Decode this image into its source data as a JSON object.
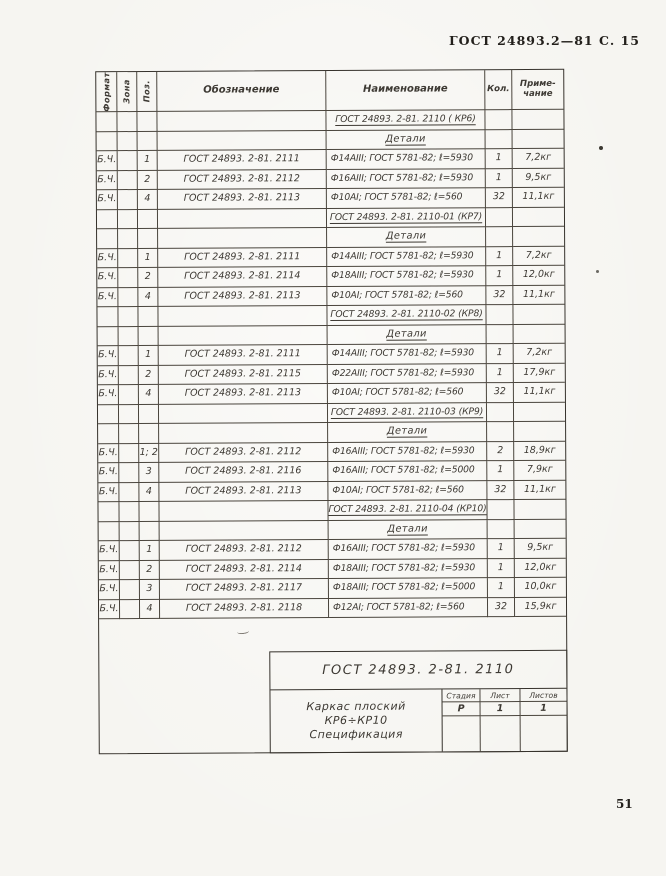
{
  "page": {
    "header_right": "ГОСТ 24893.2—81 С. 15",
    "page_number": "51"
  },
  "spec_table": {
    "headers": [
      "Формат",
      "Зона",
      "Поз.",
      "Обозначение",
      "Наименование",
      "Кол.",
      "Приме-\nчание"
    ],
    "rows": [
      {
        "type": "title",
        "naimenovanie": "ГОСТ 24893. 2-81. 2110 ( КР6)"
      },
      {
        "type": "sub",
        "naimenovanie": "Детали"
      },
      {
        "type": "data",
        "format": "Б.Ч.",
        "zona": "",
        "poz": "1",
        "oboznachenie": "ГОСТ 24893. 2-81. 2111",
        "naimenovanie": "Ф14АIII; ГОСТ 5781-82; ℓ=5930",
        "kol": "1",
        "primechanie": "7,2кг"
      },
      {
        "type": "data",
        "format": "Б.Ч.",
        "zona": "",
        "poz": "2",
        "oboznachenie": "ГОСТ 24893. 2-81. 2112",
        "naimenovanie": "Ф16АIII; ГОСТ 5781-82; ℓ=5930",
        "kol": "1",
        "primechanie": "9,5кг"
      },
      {
        "type": "data",
        "format": "Б.Ч.",
        "zona": "",
        "poz": "4",
        "oboznachenie": "ГОСТ 24893. 2-81. 2113",
        "naimenovanie": "Ф10АI; ГОСТ 5781-82; ℓ=560",
        "kol": "32",
        "primechanie": "11,1кг"
      },
      {
        "type": "title",
        "naimenovanie": "ГОСТ 24893. 2-81. 2110-01 (КР7)"
      },
      {
        "type": "sub",
        "naimenovanie": "Детали"
      },
      {
        "type": "data",
        "format": "Б.Ч.",
        "zona": "",
        "poz": "1",
        "oboznachenie": "ГОСТ 24893. 2-81. 2111",
        "naimenovanie": "Ф14АIII; ГОСТ 5781-82; ℓ=5930",
        "kol": "1",
        "primechanie": "7,2кг"
      },
      {
        "type": "data",
        "format": "Б.Ч.",
        "zona": "",
        "poz": "2",
        "oboznachenie": "ГОСТ 24893. 2-81. 2114",
        "naimenovanie": "Ф18АIII; ГОСТ 5781-82; ℓ=5930",
        "kol": "1",
        "primechanie": "12,0кг"
      },
      {
        "type": "data",
        "format": "Б.Ч.",
        "zona": "",
        "poz": "4",
        "oboznachenie": "ГОСТ 24893. 2-81. 2113",
        "naimenovanie": "Ф10АI; ГОСТ 5781-82; ℓ=560",
        "kol": "32",
        "primechanie": "11,1кг"
      },
      {
        "type": "title",
        "naimenovanie": "ГОСТ 24893. 2-81. 2110-02 (КР8)"
      },
      {
        "type": "sub",
        "naimenovanie": "Детали"
      },
      {
        "type": "data",
        "format": "Б.Ч.",
        "zona": "",
        "poz": "1",
        "oboznachenie": "ГОСТ 24893. 2-81. 2111",
        "naimenovanie": "Ф14АIII; ГОСТ 5781-82; ℓ=5930",
        "kol": "1",
        "primechanie": "7,2кг"
      },
      {
        "type": "data",
        "format": "Б.Ч.",
        "zona": "",
        "poz": "2",
        "oboznachenie": "ГОСТ 24893. 2-81. 2115",
        "naimenovanie": "Ф22АIII; ГОСТ 5781-82; ℓ=5930",
        "kol": "1",
        "primechanie": "17,9кг"
      },
      {
        "type": "data",
        "format": "Б.Ч.",
        "zona": "",
        "poz": "4",
        "oboznachenie": "ГОСТ 24893. 2-81. 2113",
        "naimenovanie": "Ф10АI; ГОСТ 5781-82; ℓ=560",
        "kol": "32",
        "primechanie": "11,1кг"
      },
      {
        "type": "title",
        "naimenovanie": "ГОСТ 24893. 2-81. 2110-03 (КР9)"
      },
      {
        "type": "sub",
        "naimenovanie": "Детали"
      },
      {
        "type": "data",
        "format": "Б.Ч.",
        "zona": "",
        "poz": "1; 2",
        "oboznachenie": "ГОСТ 24893. 2-81. 2112",
        "naimenovanie": "Ф16АIII; ГОСТ 5781-82; ℓ=5930",
        "kol": "2",
        "primechanie": "18,9кг"
      },
      {
        "type": "data",
        "format": "Б.Ч.",
        "zona": "",
        "poz": "3",
        "oboznachenie": "ГОСТ 24893. 2-81. 2116",
        "naimenovanie": "Ф16АIII; ГОСТ 5781-82; ℓ=5000",
        "kol": "1",
        "primechanie": "7,9кг"
      },
      {
        "type": "data",
        "format": "Б.Ч.",
        "zona": "",
        "poz": "4",
        "oboznachenie": "ГОСТ 24893. 2-81. 2113",
        "naimenovanie": "Ф10АI; ГОСТ 5781-82; ℓ=560",
        "kol": "32",
        "primechanie": "11,1кг"
      },
      {
        "type": "title",
        "naimenovanie": "ГОСТ 24893. 2-81. 2110-04 (КР10)"
      },
      {
        "type": "sub",
        "naimenovanie": "Детали"
      },
      {
        "type": "data",
        "format": "Б.Ч.",
        "zona": "",
        "poz": "1",
        "oboznachenie": "ГОСТ 24893. 2-81. 2112",
        "naimenovanie": "Ф16АIII; ГОСТ 5781-82; ℓ=5930",
        "kol": "1",
        "primechanie": "9,5кг"
      },
      {
        "type": "data",
        "format": "Б.Ч.",
        "zona": "",
        "poz": "2",
        "oboznachenie": "ГОСТ 24893. 2-81. 2114",
        "naimenovanie": "Ф18АIII; ГОСТ 5781-82; ℓ=5930",
        "kol": "1",
        "primechanie": "12,0кг"
      },
      {
        "type": "data",
        "format": "Б.Ч.",
        "zona": "",
        "poz": "3",
        "oboznachenie": "ГОСТ 24893. 2-81. 2117",
        "naimenovanie": "Ф18АIII; ГОСТ 5781-82; ℓ=5000",
        "kol": "1",
        "primechanie": "10,0кг"
      },
      {
        "type": "data",
        "format": "Б.Ч.",
        "zona": "",
        "poz": "4",
        "oboznachenie": "ГОСТ 24893. 2-81. 2118",
        "naimenovanie": "Ф12АI; ГОСТ 5781-82; ℓ=560",
        "kol": "32",
        "primechanie": "15,9кг"
      }
    ]
  },
  "title_block": {
    "doc_number": "ГОСТ 24893. 2-81. 2110",
    "description_lines": [
      "Каркас плоский",
      "КР6÷КР10",
      "Спецификация"
    ],
    "stage_columns": [
      "Стадия",
      "Лист",
      "Листов"
    ],
    "stage_values": [
      "Р",
      "1",
      "1"
    ]
  }
}
